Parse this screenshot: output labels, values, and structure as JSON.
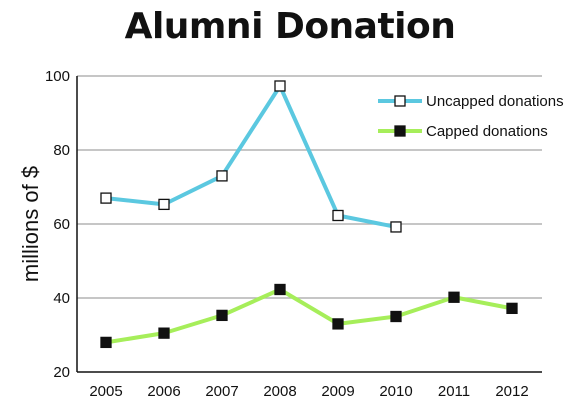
{
  "chart_data": {
    "type": "line",
    "title": "Alumni Donation",
    "xlabel": "",
    "ylabel": "millions of $",
    "categories": [
      "2005",
      "2006",
      "2007",
      "2008",
      "2009",
      "2010",
      "2011",
      "2012"
    ],
    "ylim": [
      20,
      100
    ],
    "yticks": [
      20,
      40,
      60,
      80,
      100
    ],
    "grid": true,
    "legend_position": "top-right",
    "series": [
      {
        "name": "Uncapped donations",
        "color": "#5bc8e0",
        "marker": "hollow-square",
        "values": [
          67,
          65.3,
          73,
          97.3,
          62.3,
          59.2,
          null,
          null
        ]
      },
      {
        "name": "Capped donations",
        "color": "#a6ee5a",
        "marker": "filled-square",
        "values": [
          28,
          30.5,
          35.3,
          42.3,
          33,
          35,
          40.2,
          37.2
        ]
      }
    ]
  }
}
